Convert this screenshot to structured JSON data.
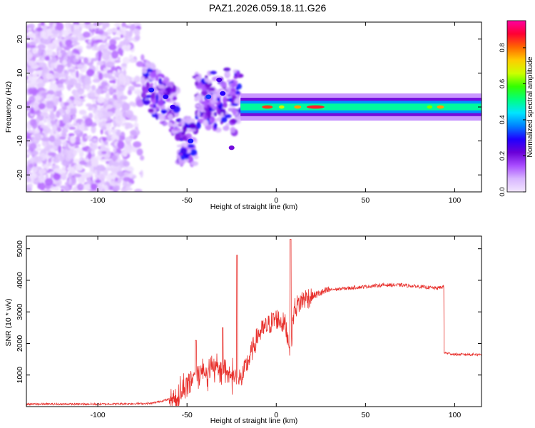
{
  "title": "PAZ1.2026.059.18.11.G26",
  "chart_data": [
    {
      "type": "heatmap",
      "name": "spectrogram",
      "xlabel": "Height of straight line (km)",
      "ylabel": "Frequency (Hz)",
      "xlim": [
        -140,
        115
      ],
      "ylim": [
        -25,
        25
      ],
      "xticks": [
        -100,
        -50,
        0,
        50,
        100
      ],
      "yticks": [
        -20,
        -10,
        0,
        10,
        20
      ],
      "colorbar": {
        "label": "Normalized spectral amplitude",
        "range": [
          0,
          0.95
        ],
        "ticks": [
          "0.0",
          "0.2",
          "0.4",
          "0.6",
          "0.8"
        ],
        "colors": [
          "#f2e6ff",
          "#d8b6ff",
          "#a94dff",
          "#6a00d8",
          "#1f00ff",
          "#0080ff",
          "#00e5ff",
          "#00ff80",
          "#33ff00",
          "#ccff00",
          "#ffcc00",
          "#ff6600",
          "#ff0033",
          "#ff00a0"
        ]
      },
      "features": {
        "carrier_frequency_hz": 0,
        "carrier_start_km": -20,
        "carrier_end_km": 115,
        "noise_region_km": [
          -140,
          -75
        ],
        "transition_region_km": [
          -75,
          -20
        ]
      }
    },
    {
      "type": "line",
      "name": "snr",
      "xlabel": "Height of straight line (km)",
      "ylabel": "SNR (10 * v/v)",
      "xlim": [
        -140,
        115
      ],
      "ylim": [
        0,
        5400
      ],
      "xticks": [
        -100,
        -50,
        0,
        50,
        100
      ],
      "yticks": [
        1000,
        2000,
        3000,
        4000,
        5000
      ],
      "color": "#e8312d",
      "profile": {
        "x": [
          -140,
          -100,
          -70,
          -55,
          -45,
          -30,
          -20,
          -10,
          0,
          5,
          8,
          10,
          15,
          20,
          25,
          30,
          40,
          50,
          60,
          70,
          80,
          90,
          94,
          95,
          100,
          115
        ],
        "y": [
          80,
          80,
          100,
          300,
          1100,
          1200,
          800,
          2300,
          2800,
          2600,
          1800,
          3100,
          3400,
          3500,
          3600,
          3700,
          3750,
          3800,
          3850,
          3850,
          3800,
          3750,
          3800,
          1700,
          1650,
          1650
        ]
      },
      "spikes": [
        {
          "x": -22,
          "y": 4800
        },
        {
          "x": 8,
          "y": 5300
        },
        {
          "x": -45,
          "y": 2100
        },
        {
          "x": -30,
          "y": 2500
        }
      ]
    }
  ]
}
